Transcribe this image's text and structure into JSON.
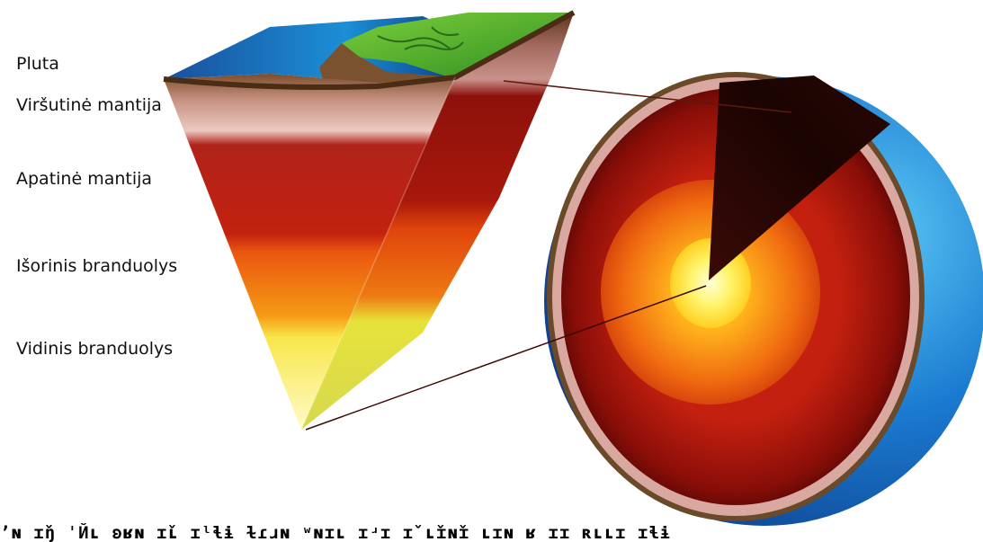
{
  "labels": [
    {
      "key": "crust",
      "text": "Pluta"
    },
    {
      "key": "upper_mantle",
      "text": "Viršutinė mantija"
    },
    {
      "key": "lower_mantle",
      "text": "Apatinė mantija"
    },
    {
      "key": "outer_core",
      "text": "Išorinis branduolys"
    },
    {
      "key": "inner_core",
      "text": "Vidinis branduolys"
    }
  ],
  "colors": {
    "ocean": "#1a6fc2",
    "land": "#3aa12a",
    "crust": "#6b4a2a",
    "upper_mantle": "#d9a8a0",
    "lower_mantle": "#a5140c",
    "outer_core": "#f07a10",
    "inner_core": "#f6f27a",
    "leader_red": "#d7262c",
    "leader_blue": "#3b6ea5"
  },
  "bottom_text": "ʼɴ ɪ̌ŋ ˈЙʟ ʚʁɴ ɪ̌ʟ ɪˡɬɨ ɫɾɹɴ ʷɴɪʟ ɪʴɪ ɪ̌ ʟ̌ɪɴ̌ɪ ʟɪɴ ʁ ɪɪ ʀʟʟɪ ɪɬɨ"
}
